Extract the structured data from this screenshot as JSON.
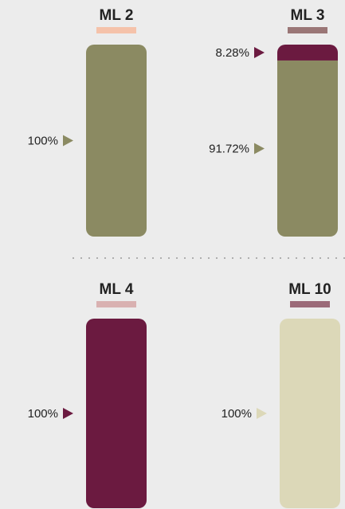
{
  "chart_data": [
    {
      "type": "bar",
      "title": "ML 2",
      "accent": "#f5c2aa",
      "values": [
        100
      ],
      "value_labels": [
        "100%"
      ],
      "colors": [
        "#8b8a62"
      ]
    },
    {
      "type": "bar",
      "title": "ML 3",
      "accent": "#9a7676",
      "values": [
        91.72,
        8.28
      ],
      "value_labels": [
        "91.72%",
        "8.28%"
      ],
      "colors": [
        "#8b8a62",
        "#6b1a40"
      ]
    },
    {
      "type": "bar",
      "title": "ML 4",
      "accent": "#d9b1b1",
      "values": [
        100
      ],
      "value_labels": [
        "100%"
      ],
      "colors": [
        "#6b1a40"
      ]
    },
    {
      "type": "bar",
      "title": "ML 10",
      "accent": "#9b6a78",
      "values": [
        100
      ],
      "value_labels": [
        "100%"
      ],
      "colors": [
        "#dcd8b8"
      ]
    }
  ]
}
